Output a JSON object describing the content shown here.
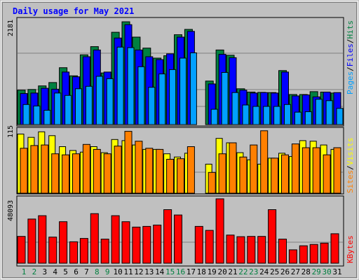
{
  "chart_data": [
    {
      "type": "bar",
      "title": "Daily usage for May 2021",
      "categories": [
        "1",
        "2",
        "3",
        "4",
        "5",
        "6",
        "7",
        "8",
        "9",
        "10",
        "11",
        "12",
        "13",
        "14",
        "15",
        "16",
        "17",
        "18",
        "19",
        "20",
        "21",
        "22",
        "23",
        "24",
        "25",
        "26",
        "27",
        "28",
        "29",
        "30",
        "31"
      ],
      "weekend_days": [
        "1",
        "2",
        "8",
        "9",
        "15",
        "16",
        "22",
        "23",
        "29",
        "30"
      ],
      "ymax_label": "2181",
      "ymax": 2181,
      "legend": [
        {
          "label": "Pages",
          "color": "#00a0ff"
        },
        {
          "label": "/",
          "color": "#000000"
        },
        {
          "label": "Files",
          "color": "#0000ff"
        },
        {
          "label": "/",
          "color": "#000000"
        },
        {
          "label": "Hits",
          "color": "#008040"
        }
      ],
      "series": [
        {
          "name": "Hits",
          "color": "#008040",
          "values": [
            720,
            735,
            810,
            880,
            1190,
            1020,
            1460,
            1630,
            1080,
            1930,
            2150,
            1830,
            1600,
            1390,
            1440,
            1880,
            1990,
            0,
            910,
            1560,
            1450,
            750,
            680,
            675,
            670,
            1130,
            630,
            630,
            690,
            680,
            660
          ]
        },
        {
          "name": "Files",
          "color": "#0000ff",
          "values": [
            650,
            660,
            760,
            740,
            1100,
            1000,
            1420,
            1560,
            1100,
            1810,
            2090,
            1560,
            1420,
            1360,
            1480,
            1830,
            1950,
            0,
            850,
            1470,
            1400,
            720,
            660,
            670,
            660,
            1100,
            600,
            620,
            580,
            680,
            670
          ]
        },
        {
          "name": "Pages",
          "color": "#00a0ff",
          "values": [
            420,
            390,
            300,
            660,
            610,
            750,
            800,
            1010,
            960,
            1620,
            1610,
            1210,
            780,
            1060,
            1150,
            1390,
            1500,
            0,
            320,
            1090,
            670,
            410,
            380,
            380,
            380,
            420,
            260,
            270,
            530,
            500,
            340
          ]
        }
      ]
    },
    {
      "type": "bar",
      "ymax_label": "115",
      "ymax": 115,
      "legend": [
        {
          "label": "Sites",
          "color": "#ff8000"
        },
        {
          "label": "/",
          "color": "#000000"
        },
        {
          "label": "Visits",
          "color": "#ffff00"
        }
      ],
      "series": [
        {
          "name": "Visits",
          "color": "#ffff00",
          "values": [
            108,
            102,
            112,
            105,
            85,
            78,
            75,
            85,
            74,
            98,
            96,
            88,
            80,
            80,
            72,
            66,
            73,
            0,
            53,
            100,
            92,
            74,
            61,
            53,
            64,
            73,
            67,
            96,
            95,
            88,
            80
          ]
        },
        {
          "name": "Sites",
          "color": "#ff8000",
          "values": [
            82,
            87,
            88,
            72,
            70,
            72,
            89,
            80,
            72,
            86,
            113,
            95,
            82,
            80,
            62,
            63,
            85,
            0,
            38,
            72,
            92,
            66,
            88,
            114,
            64,
            70,
            90,
            83,
            83,
            70,
            83
          ]
        }
      ]
    },
    {
      "type": "bar",
      "ymax_label": "48093",
      "ymax": 48093,
      "legend": [
        {
          "label": "KBytes",
          "color": "#ff0000"
        }
      ],
      "series": [
        {
          "name": "KBytes",
          "color": "#ff0000",
          "values": [
            20000,
            33000,
            35500,
            19500,
            31000,
            16000,
            18500,
            37000,
            18000,
            35500,
            31000,
            27000,
            27500,
            28500,
            40000,
            36000,
            0,
            27500,
            24500,
            48093,
            21000,
            19800,
            20000,
            20000,
            40000,
            18000,
            10000,
            13000,
            14000,
            15000,
            22000
          ]
        }
      ]
    }
  ]
}
